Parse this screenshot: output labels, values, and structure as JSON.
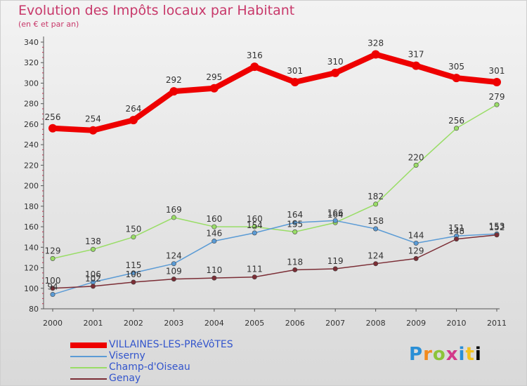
{
  "header": {
    "title": "Evolution des Impôts locaux par Habitant",
    "subtitle": "(en € et par an)"
  },
  "logo": {
    "text": "Proxiti"
  },
  "chart_data": {
    "type": "line",
    "title": "Evolution des Impôts locaux par Habitant",
    "subtitle": "(en € et par an)",
    "xlabel": "",
    "ylabel": "",
    "x": [
      "2000",
      "2001",
      "2002",
      "2003",
      "2004",
      "2005",
      "2006",
      "2007",
      "2008",
      "2009",
      "2010",
      "2011"
    ],
    "ylim": [
      80,
      340
    ],
    "yticks": [
      80,
      100,
      120,
      140,
      160,
      180,
      200,
      220,
      240,
      260,
      280,
      300,
      320,
      340
    ],
    "grid": false,
    "legend_position": "bottom-left",
    "series": [
      {
        "name": "VILLAINES-LES-PRéVôTES",
        "color": "#ee0000",
        "width": 8,
        "marker": 6,
        "values": [
          256,
          254,
          264,
          292,
          295,
          316,
          301,
          310,
          328,
          317,
          305,
          301
        ]
      },
      {
        "name": "Viserny",
        "color": "#5b9bd5",
        "width": 1.5,
        "marker": 3.2,
        "values": [
          94,
          106,
          115,
          124,
          146,
          154,
          164,
          166,
          158,
          144,
          151,
          153
        ]
      },
      {
        "name": "Champ-d'Oiseau",
        "color": "#99dd66",
        "width": 1.5,
        "marker": 3.2,
        "values": [
          129,
          138,
          150,
          169,
          160,
          160,
          155,
          164,
          182,
          220,
          256,
          279
        ]
      },
      {
        "name": "Genay",
        "color": "#7b2d35",
        "width": 1.5,
        "marker": 3.2,
        "values": [
          100,
          102,
          106,
          109,
          110,
          111,
          118,
          119,
          124,
          129,
          148,
          152
        ]
      }
    ],
    "data_labels": [
      {
        "series": 0,
        "values": [
          "256",
          "254",
          "264",
          "292",
          "295",
          "316",
          "301",
          "310",
          "328",
          "317",
          "305",
          "301"
        ]
      },
      {
        "series": 1,
        "values": [
          "94",
          "106",
          "115",
          "124",
          "146",
          "154",
          "164",
          "166",
          "158",
          "144",
          "151",
          "153"
        ]
      },
      {
        "series": 2,
        "values": [
          "129",
          "138",
          "150",
          "169",
          "160",
          "160",
          "155",
          "164",
          "182",
          "220",
          "256",
          "279"
        ]
      },
      {
        "series": 3,
        "values": [
          "100",
          "102",
          "106",
          "109",
          "110",
          "111",
          "118",
          "119",
          "124",
          "129",
          "148",
          "152"
        ]
      }
    ]
  }
}
